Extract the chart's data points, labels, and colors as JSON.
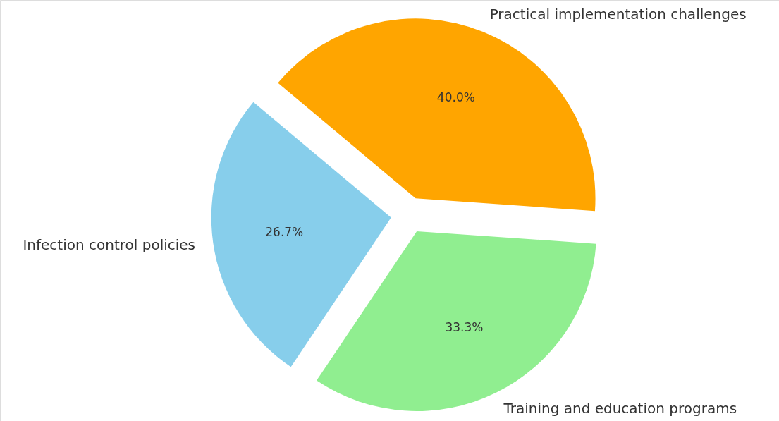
{
  "chart_data": {
    "type": "pie",
    "categories": [
      "Infection control policies",
      "Training and education programs",
      "Practical implementation challenges"
    ],
    "values": [
      26.7,
      33.3,
      40.0
    ],
    "colors": [
      "#87ceeb",
      "#90ee90",
      "#ffa500"
    ],
    "value_labels": [
      "26.7%",
      "33.3%",
      "40.0%"
    ]
  }
}
